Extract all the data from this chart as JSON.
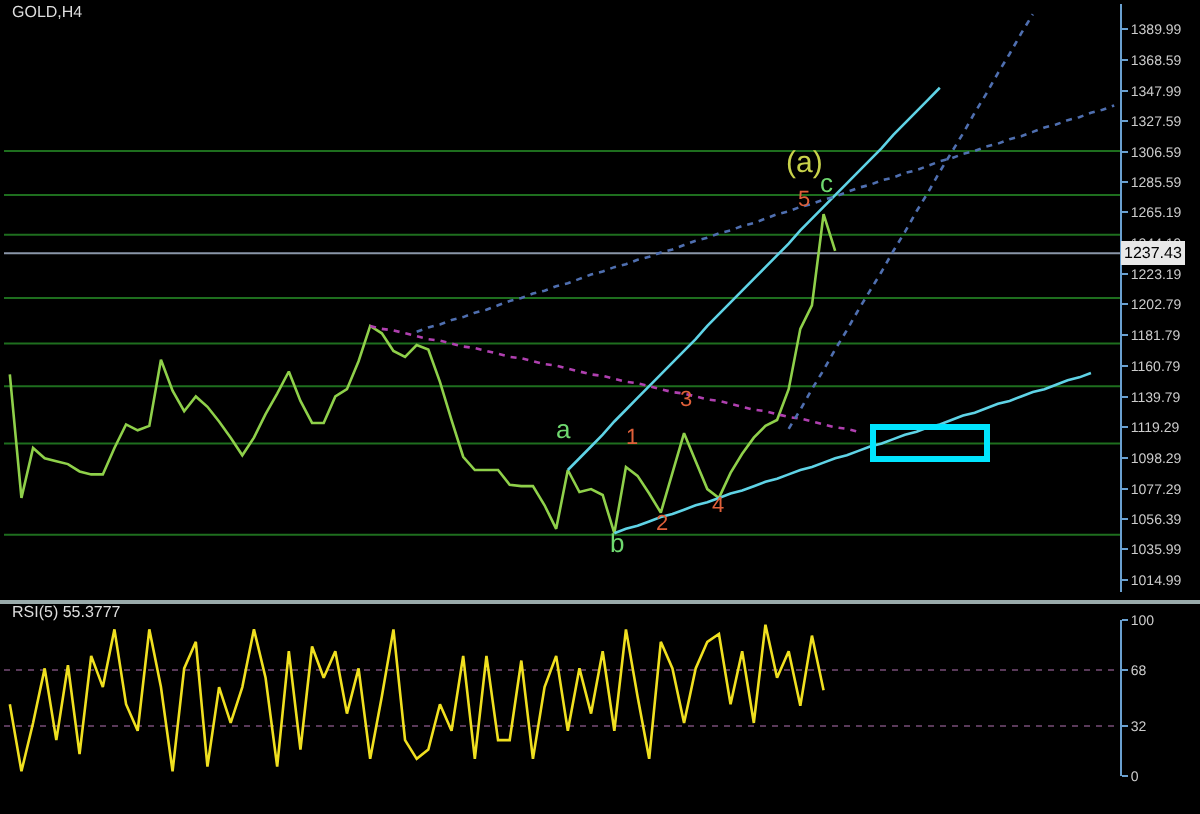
{
  "chart_data": [
    {
      "type": "line",
      "title": "GOLD,H4",
      "ylim": [
        1007,
        1407
      ],
      "tick_labels": "y",
      "grid": false,
      "marker": "none",
      "categories": [
        null,
        null,
        null,
        null,
        null,
        null,
        null,
        null,
        null,
        null,
        null,
        null,
        null,
        null,
        null,
        null,
        null,
        null,
        null,
        null,
        null,
        null,
        null,
        null,
        null,
        null,
        null,
        null,
        null,
        null,
        null,
        null,
        null,
        null,
        null,
        null,
        null,
        null,
        null,
        null,
        null,
        null,
        null,
        null,
        null,
        null,
        null,
        null,
        null,
        null,
        null,
        null,
        null,
        null,
        null,
        null,
        null,
        null,
        null,
        null,
        null,
        null,
        null,
        null,
        null,
        null,
        null,
        null,
        null,
        null,
        null,
        null,
        null,
        null,
        null,
        null,
        null,
        null,
        null,
        null,
        null,
        null,
        null,
        null,
        null,
        null,
        null,
        null,
        null,
        null,
        null,
        null,
        null,
        null,
        null,
        null
      ],
      "yticks": [
        1014.99,
        1035.99,
        1056.39,
        1077.29,
        1098.29,
        1119.29,
        1139.79,
        1160.79,
        1181.79,
        1202.79,
        1223.19,
        1244.19,
        1265.19,
        1285.59,
        1306.59,
        1327.59,
        1347.99,
        1368.59,
        1389.99
      ],
      "series": [
        {
          "color": "#8fd04a",
          "line_style": "solid",
          "values": [
            1155,
            1071,
            1105,
            1098,
            1096,
            1094,
            1089,
            1087,
            1087,
            1105,
            1121,
            1117,
            1120,
            1165,
            1144,
            1130,
            1140,
            1133,
            1123,
            1112,
            1100,
            1112,
            1128,
            1142,
            1157,
            1137,
            1122,
            1122,
            1140,
            1145,
            1164,
            1188,
            1183,
            1171,
            1167,
            1175,
            1172,
            1150,
            1124,
            1099,
            1090,
            1090,
            1090,
            1080,
            1079,
            1079,
            1066,
            1050,
            1090,
            1075,
            1077,
            1073,
            1047,
            1092,
            1086,
            1074,
            1061,
            1088,
            1115,
            1096,
            1077,
            1071,
            1088,
            1101,
            1112,
            1120,
            1124,
            1145,
            1186,
            1202,
            1264,
            1239,
            null,
            null,
            null,
            null,
            null,
            null,
            null,
            null,
            null,
            null,
            null,
            null,
            null,
            null,
            null,
            null,
            null,
            null,
            null,
            null,
            null,
            null,
            null,
            null
          ]
        },
        {
          "color": "#5fd3e6",
          "line_style": "solid",
          "values": [
            null,
            null,
            null,
            null,
            null,
            null,
            null,
            null,
            null,
            null,
            null,
            null,
            null,
            null,
            null,
            null,
            null,
            null,
            null,
            null,
            null,
            null,
            null,
            null,
            null,
            null,
            null,
            null,
            null,
            null,
            null,
            null,
            null,
            null,
            null,
            null,
            null,
            null,
            null,
            null,
            null,
            null,
            null,
            null,
            null,
            null,
            null,
            null,
            1090,
            1098,
            1106,
            1114,
            1123,
            1131,
            1139,
            1147,
            1155,
            1163,
            1171,
            1179,
            1188,
            1196,
            1204,
            1212,
            1220,
            1228,
            1236,
            1244,
            1253,
            1261,
            1269,
            1277,
            1285,
            1293,
            1301,
            1309,
            1318,
            1326,
            1334,
            1342,
            1350,
            null,
            null,
            null,
            null,
            null,
            null,
            null,
            null,
            null,
            null,
            null,
            null,
            null,
            null,
            null
          ]
        },
        {
          "color": "#5fd3e6",
          "line_style": "solid",
          "values": [
            null,
            null,
            null,
            null,
            null,
            null,
            null,
            null,
            null,
            null,
            null,
            null,
            null,
            null,
            null,
            null,
            null,
            null,
            null,
            null,
            null,
            null,
            null,
            null,
            null,
            null,
            null,
            null,
            null,
            null,
            null,
            null,
            null,
            null,
            null,
            null,
            null,
            null,
            null,
            null,
            null,
            null,
            null,
            null,
            null,
            null,
            null,
            null,
            null,
            null,
            null,
            null,
            1047,
            1050,
            1052,
            1055,
            1058,
            1060,
            1063,
            1066,
            1068,
            1071,
            1074,
            1076,
            1079,
            1082,
            1084,
            1087,
            1090,
            1092,
            1095,
            1098,
            1100,
            1103,
            1106,
            1108,
            1111,
            1114,
            1116,
            1119,
            1121,
            1124,
            1127,
            1129,
            1132,
            1135,
            1137,
            1140,
            1143,
            1145,
            1148,
            1151,
            1153,
            1156,
            null,
            null
          ]
        },
        {
          "color": "#4f6fb0",
          "line_style": "dotted",
          "values": [
            null,
            null,
            null,
            null,
            null,
            null,
            null,
            null,
            null,
            null,
            null,
            null,
            null,
            null,
            null,
            null,
            null,
            null,
            null,
            null,
            null,
            null,
            null,
            null,
            null,
            null,
            null,
            null,
            null,
            null,
            null,
            null,
            null,
            null,
            null,
            1184,
            1187,
            1189,
            1192,
            1194,
            1197,
            1199,
            1202,
            1205,
            1207,
            1210,
            1212,
            1215,
            1217,
            1220,
            1223,
            1225,
            1228,
            1230,
            1233,
            1235,
            1238,
            1240,
            1243,
            1246,
            1248,
            1251,
            1253,
            1256,
            1258,
            1261,
            1264,
            1266,
            1269,
            1271,
            1274,
            1276,
            1279,
            1282,
            1284,
            1287,
            1289,
            1292,
            1294,
            1297,
            1300,
            1302,
            1305,
            1307,
            1310,
            1312,
            1315,
            1317,
            1320,
            1323,
            1325,
            1328,
            1330,
            1333,
            1335,
            1338
          ]
        },
        {
          "color": "#b040b0",
          "line_style": "dotted",
          "values": [
            null,
            null,
            null,
            null,
            null,
            null,
            null,
            null,
            null,
            null,
            null,
            null,
            null,
            null,
            null,
            null,
            null,
            null,
            null,
            null,
            null,
            null,
            null,
            null,
            null,
            null,
            null,
            null,
            null,
            null,
            null,
            1188,
            1186,
            1185,
            1183,
            1181,
            1179,
            1178,
            1176,
            1174,
            1173,
            1171,
            1169,
            1167,
            1166,
            1164,
            1162,
            1161,
            1159,
            1157,
            1155,
            1154,
            1152,
            1150,
            1149,
            1147,
            1145,
            1143,
            1142,
            1140,
            1138,
            1137,
            1135,
            1133,
            1131,
            1130,
            1128,
            1126,
            1125,
            1123,
            1121,
            1119,
            1118,
            1116,
            null,
            null,
            null,
            null,
            null,
            null,
            null,
            null,
            null,
            null,
            null,
            null,
            null,
            null,
            null,
            null,
            null,
            null,
            null,
            null,
            null,
            null
          ]
        },
        {
          "color": "#4f6fb0",
          "line_style": "dotted",
          "values": [
            null,
            null,
            null,
            null,
            null,
            null,
            null,
            null,
            null,
            null,
            null,
            null,
            null,
            null,
            null,
            null,
            null,
            null,
            null,
            null,
            null,
            null,
            null,
            null,
            null,
            null,
            null,
            null,
            null,
            null,
            null,
            null,
            null,
            null,
            null,
            null,
            null,
            null,
            null,
            null,
            null,
            null,
            null,
            null,
            null,
            null,
            null,
            null,
            null,
            null,
            null,
            null,
            null,
            null,
            null,
            null,
            null,
            null,
            null,
            null,
            null,
            null,
            null,
            null,
            null,
            null,
            null,
            1118,
            1131,
            1145,
            1158,
            1172,
            1185,
            1199,
            1212,
            1225,
            1239,
            1252,
            1266,
            1279,
            1293,
            1306,
            1319,
            1333,
            1346,
            1360,
            1373,
            1387,
            1400,
            null,
            null,
            null,
            null,
            null,
            null,
            null
          ]
        }
      ],
      "ref_lines": [
        {
          "axis": "y",
          "value": 1237.43,
          "label": "1237.43",
          "color": "#8a96a8",
          "line_style": "solid"
        },
        {
          "axis": "y",
          "value": 1307,
          "color": "#1e6e1e",
          "line_style": "solid"
        },
        {
          "axis": "y",
          "value": 1277,
          "color": "#1e6e1e",
          "line_style": "solid"
        },
        {
          "axis": "y",
          "value": 1250,
          "color": "#1e6e1e",
          "line_style": "solid"
        },
        {
          "axis": "y",
          "value": 1207,
          "color": "#1e6e1e",
          "line_style": "solid"
        },
        {
          "axis": "y",
          "value": 1176,
          "color": "#1e6e1e",
          "line_style": "solid"
        },
        {
          "axis": "y",
          "value": 1147,
          "color": "#1e6e1e",
          "line_style": "solid"
        },
        {
          "axis": "y",
          "value": 1108,
          "color": "#1e6e1e",
          "line_style": "solid"
        },
        {
          "axis": "y",
          "value": 1046,
          "color": "#1e6e1e",
          "line_style": "solid"
        }
      ],
      "annotations": [
        "(a)",
        "c",
        "5",
        "a",
        "b",
        "1",
        "2",
        "3",
        "4"
      ]
    },
    {
      "type": "line",
      "title": "RSI(5) 55.3777",
      "ylim": [
        0,
        100
      ],
      "yticks": [
        0,
        32,
        68,
        100
      ],
      "tick_labels": "y",
      "grid": false,
      "marker": "none",
      "categories": [
        null,
        null,
        null,
        null,
        null,
        null,
        null,
        null,
        null,
        null,
        null,
        null,
        null,
        null,
        null,
        null,
        null,
        null,
        null,
        null,
        null,
        null,
        null,
        null,
        null,
        null,
        null,
        null,
        null,
        null,
        null,
        null,
        null,
        null,
        null,
        null,
        null,
        null,
        null,
        null,
        null,
        null,
        null,
        null,
        null,
        null,
        null,
        null,
        null,
        null,
        null,
        null,
        null,
        null,
        null,
        null,
        null,
        null,
        null,
        null,
        null,
        null,
        null,
        null,
        null,
        null,
        null,
        null,
        null,
        null,
        null,
        null,
        null,
        null,
        null,
        null,
        null,
        null,
        null,
        null,
        null,
        null,
        null,
        null,
        null,
        null,
        null,
        null,
        null,
        null,
        null,
        null,
        null,
        null,
        null,
        null
      ],
      "series": [
        {
          "color": "#f0e020",
          "line_style": "solid",
          "values": [
            46,
            3,
            34,
            69,
            23,
            71,
            14,
            77,
            57,
            94,
            46,
            29,
            94,
            57,
            3,
            69,
            86,
            6,
            57,
            34,
            57,
            94,
            63,
            6,
            80,
            17,
            83,
            63,
            80,
            40,
            69,
            11,
            51,
            94,
            23,
            11,
            17,
            46,
            29,
            77,
            11,
            77,
            23,
            23,
            74,
            11,
            57,
            77,
            29,
            69,
            40,
            80,
            29,
            94,
            51,
            11,
            86,
            69,
            34,
            69,
            86,
            91,
            46,
            80,
            34,
            97,
            63,
            80,
            45,
            90,
            55,
            null,
            null,
            null,
            null,
            null,
            null,
            null,
            null,
            null,
            null,
            null,
            null,
            null,
            null,
            null,
            null,
            null,
            null,
            null,
            null,
            null,
            null,
            null,
            null,
            null
          ]
        }
      ],
      "ref_lines": [
        {
          "axis": "y",
          "value": 68,
          "color": "#5a3a5a",
          "line_style": "dotted"
        },
        {
          "axis": "y",
          "value": 32,
          "color": "#5a3a5a",
          "line_style": "dotted"
        }
      ]
    }
  ]
}
